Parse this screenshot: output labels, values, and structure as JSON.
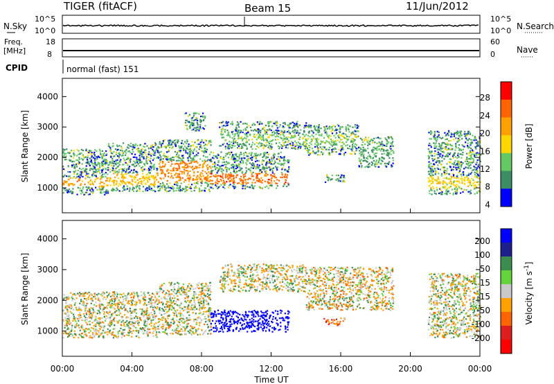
{
  "header": {
    "radar": "TIGER (fitACF)",
    "beam": "Beam 15",
    "date": "11/Jun/2012"
  },
  "panels": {
    "nsky": {
      "left_label": "N.Sky",
      "right_label": "N.Search",
      "left_ticks": [
        "10^5",
        "10^0"
      ],
      "right_ticks": [
        "10^5",
        "10^0"
      ]
    },
    "freq": {
      "left_label_1": "Freq.",
      "left_label_2": "[MHz]",
      "right_label": "Nave",
      "left_ticks": [
        "18",
        "8"
      ],
      "right_ticks": [
        "60",
        "0"
      ]
    },
    "cpid": {
      "label": "CPID",
      "value": "normal (fast) 151"
    }
  },
  "axes": {
    "ylabel": "Slant Range [km]",
    "yticks": [
      "4000",
      "3000",
      "2000",
      "1000"
    ],
    "xticks": [
      "00:00",
      "04:00",
      "08:00",
      "12:00",
      "16:00",
      "20:00",
      "00:00"
    ],
    "xlabel": "Time UT"
  },
  "colorbars": {
    "power": {
      "label": "Power [dB]",
      "ticks": [
        "28",
        "24",
        "20",
        "16",
        "12",
        "8",
        "4"
      ],
      "colors": [
        "#ff0000",
        "#ff6400",
        "#ffa000",
        "#ffd700",
        "#64c864",
        "#3c8c64",
        "#0000ff"
      ]
    },
    "velocity": {
      "label_prefix": "Velocity [m s",
      "label_sup": "-1",
      "label_suffix": "]",
      "ticks": [
        "200",
        "100",
        "50",
        "15",
        "-15",
        "-50",
        "-100",
        "-200"
      ],
      "colors": [
        "#0000ff",
        "#1e1e8c",
        "#3c8c50",
        "#64d23c",
        "#c8c8c8",
        "#ffa000",
        "#ff6400",
        "#dc1e1e",
        "#ff0000"
      ]
    }
  },
  "chart_data": {
    "type": "heatmap",
    "title": "TIGER (fitACF)",
    "xlabel": "Time UT",
    "ylabel": "Slant Range [km]",
    "x_range_hours": [
      0,
      24
    ],
    "y_range_km": [
      180,
      4600
    ],
    "panels": [
      {
        "name": "Power",
        "unit": "dB",
        "scale": [
          0,
          30
        ],
        "regions": [
          {
            "t0": 0.0,
            "t1": 2.6,
            "r0": 800,
            "r1": 2300,
            "core": [
              1050,
              1350
            ],
            "core_db": 22
          },
          {
            "t0": 2.6,
            "t1": 5.5,
            "r0": 900,
            "r1": 2500,
            "core": [
              1100,
              1500
            ],
            "core_db": 20
          },
          {
            "t0": 5.5,
            "t1": 8.5,
            "r0": 900,
            "r1": 2600,
            "core": [
              1200,
              1900
            ],
            "core_db": 24
          },
          {
            "t0": 7.0,
            "t1": 8.2,
            "r0": 2900,
            "r1": 3500,
            "core": [
              3100,
              3300
            ],
            "core_db": 10
          },
          {
            "t0": 8.5,
            "t1": 13.0,
            "r0": 1000,
            "r1": 2200,
            "core": [
              1150,
              1500
            ],
            "core_db": 26
          },
          {
            "t0": 9.0,
            "t1": 14.0,
            "r0": 2300,
            "r1": 3200,
            "core": [
              2500,
              2800
            ],
            "core_db": 14
          },
          {
            "t0": 14.0,
            "t1": 17.0,
            "r0": 2100,
            "r1": 3100,
            "core": [
              2400,
              2800
            ],
            "core_db": 14
          },
          {
            "t0": 17.0,
            "t1": 19.0,
            "r0": 1700,
            "r1": 2700,
            "core": [
              1900,
              2300
            ],
            "core_db": 12
          },
          {
            "t0": 15.0,
            "t1": 16.2,
            "r0": 1200,
            "r1": 1450,
            "core": [
              1250,
              1400
            ],
            "core_db": 10
          },
          {
            "t0": 21.0,
            "t1": 24.0,
            "r0": 800,
            "r1": 2900,
            "core": [
              1000,
              1400
            ],
            "core_db": 18
          }
        ]
      },
      {
        "name": "Velocity",
        "unit": "m s-1",
        "scale": [
          -250,
          250
        ],
        "regions": [
          {
            "t0": 0.0,
            "t1": 5.5,
            "r0": 800,
            "r1": 2300,
            "v": 0
          },
          {
            "t0": 5.5,
            "t1": 8.5,
            "r0": 900,
            "r1": 2600,
            "v": 0
          },
          {
            "t0": 8.5,
            "t1": 13.0,
            "r0": 1000,
            "r1": 1700,
            "v": 220
          },
          {
            "t0": 9.0,
            "t1": 14.0,
            "r0": 2300,
            "r1": 3200,
            "v": 0
          },
          {
            "t0": 14.0,
            "t1": 19.0,
            "r0": 1700,
            "r1": 3100,
            "v": -10
          },
          {
            "t0": 15.0,
            "t1": 16.2,
            "r0": 1200,
            "r1": 1450,
            "v": -60
          },
          {
            "t0": 21.0,
            "t1": 24.0,
            "r0": 800,
            "r1": 2900,
            "v": 0
          }
        ]
      }
    ]
  }
}
